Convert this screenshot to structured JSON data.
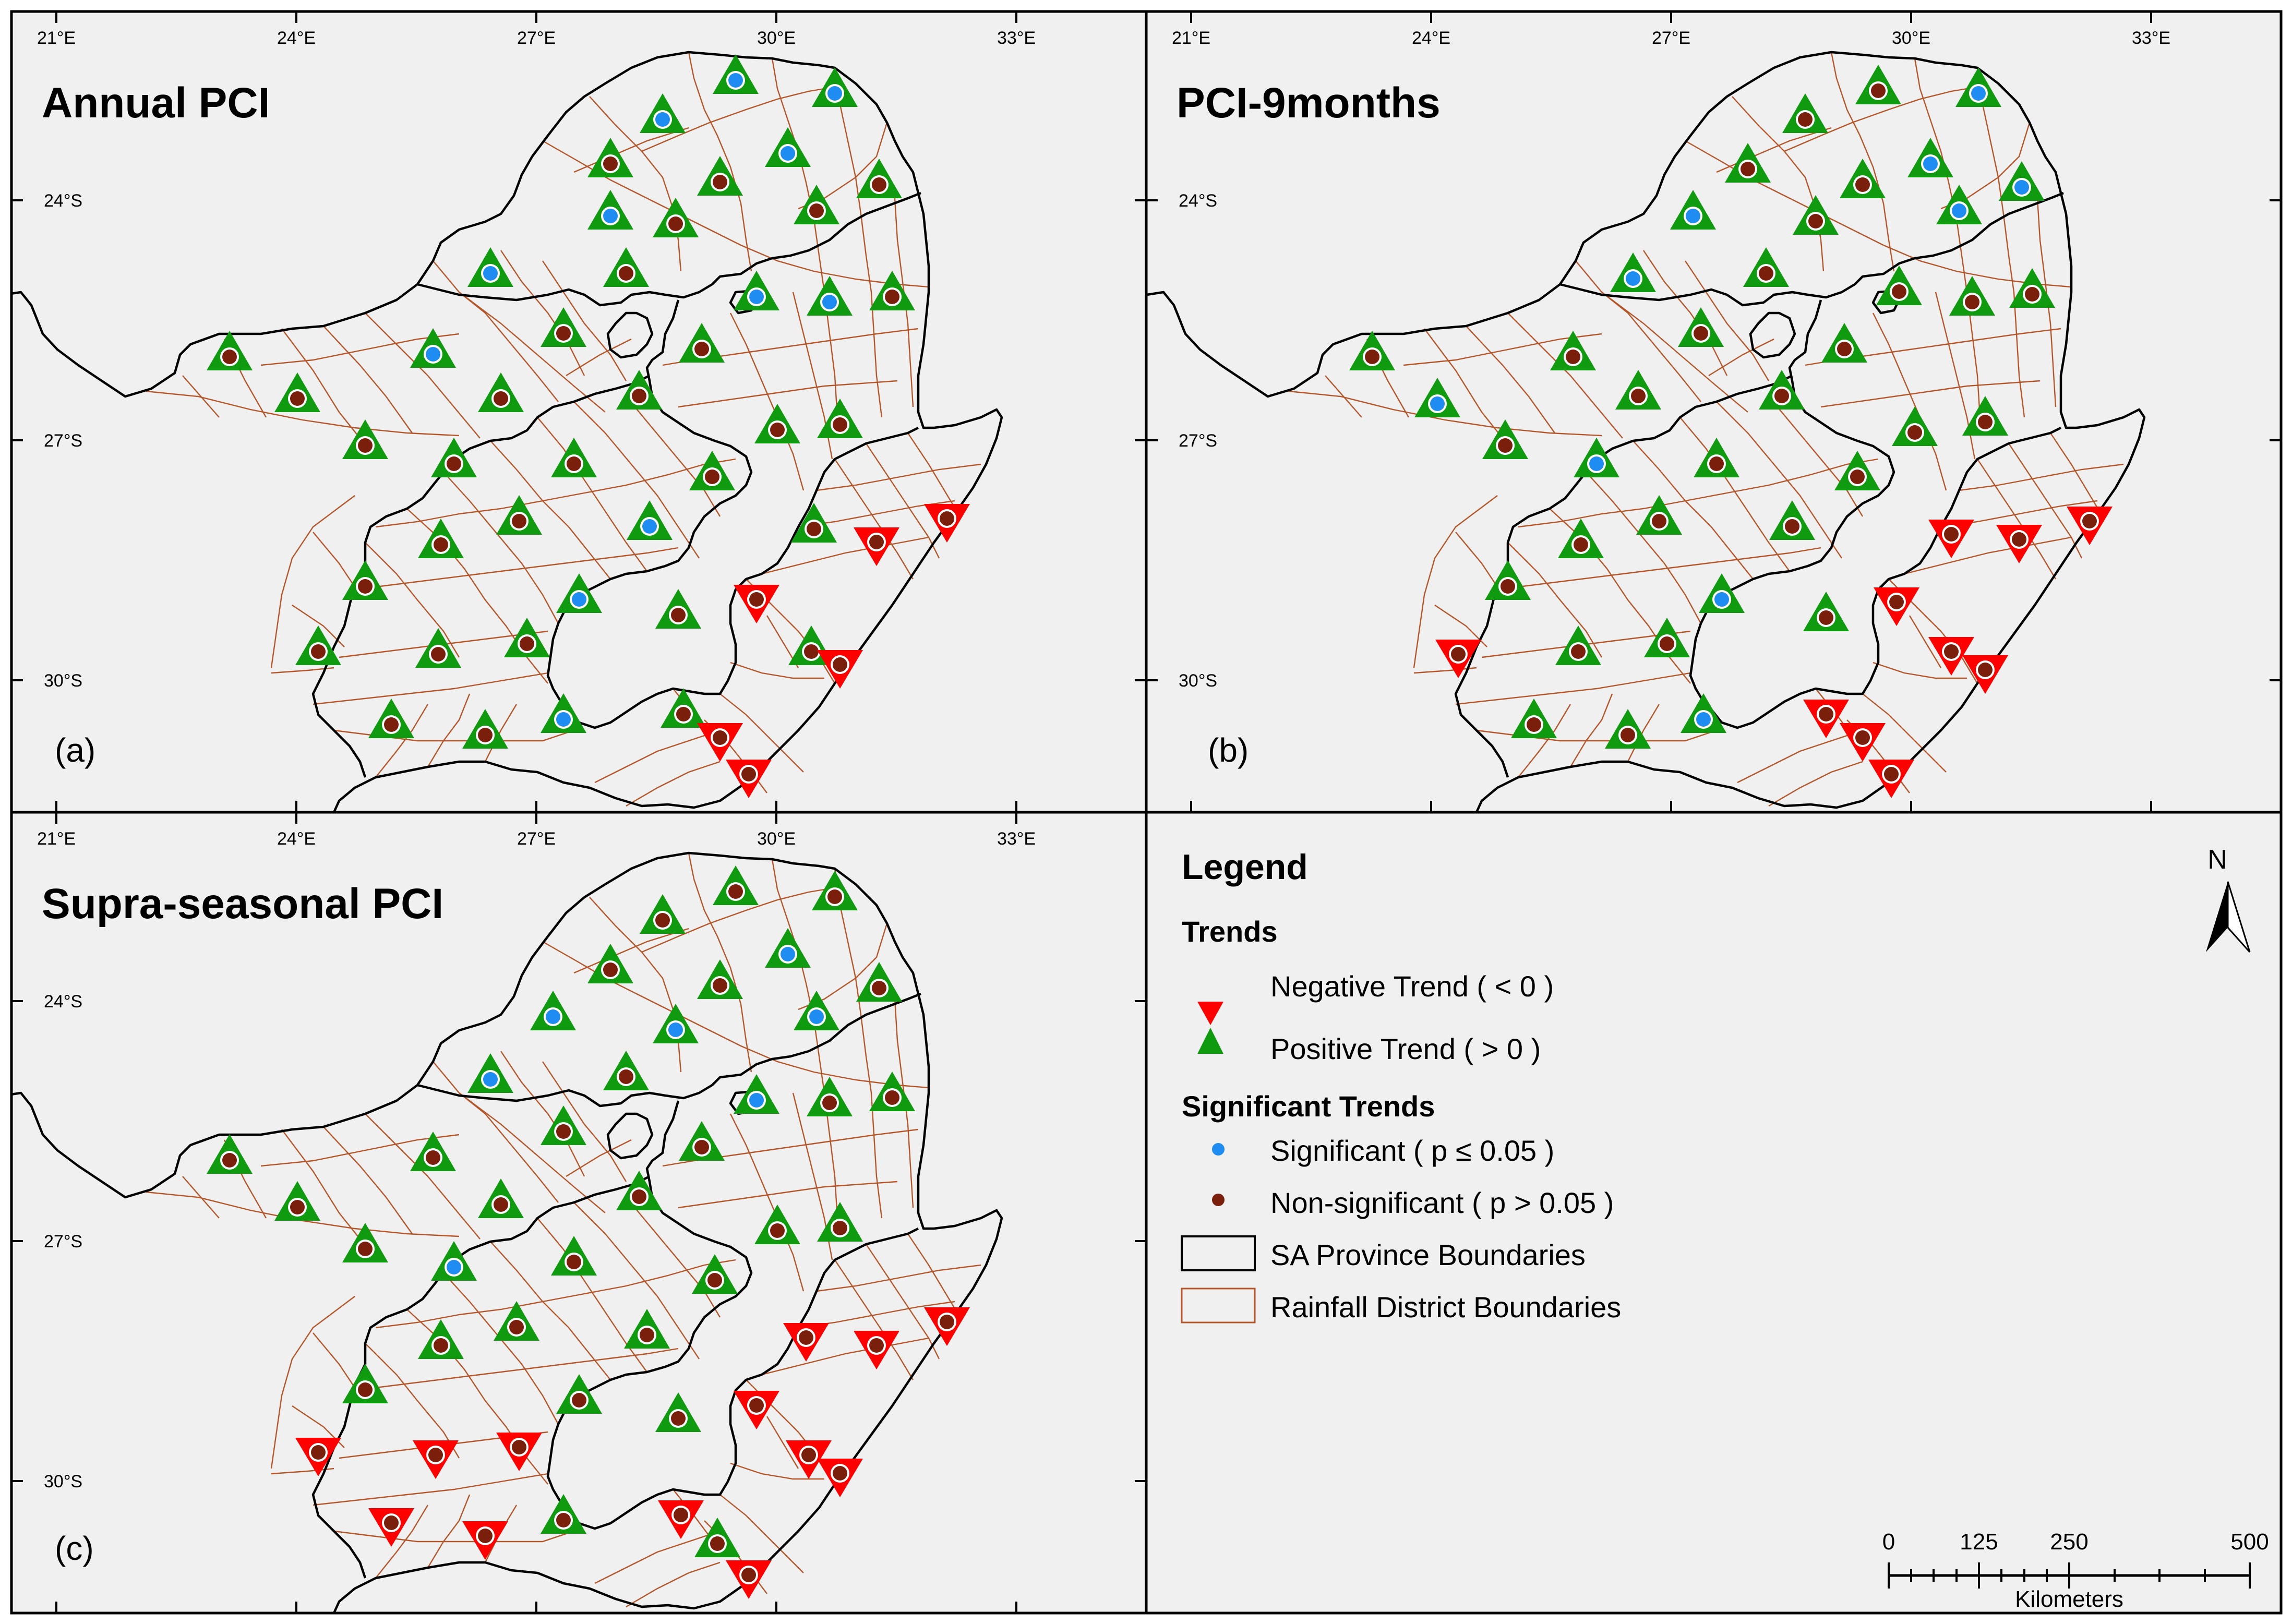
{
  "panels": [
    {
      "title": "Annual PCI",
      "label": "(a)",
      "stations": [
        [
          1410,
          150,
          "p",
          "s"
        ],
        [
          1600,
          175,
          "p",
          "s"
        ],
        [
          1270,
          225,
          "p",
          "s"
        ],
        [
          1510,
          290,
          "p",
          "s"
        ],
        [
          1170,
          410,
          "p",
          "s"
        ],
        [
          940,
          520,
          "p",
          "s"
        ],
        [
          830,
          675,
          "p",
          "s"
        ],
        [
          1450,
          565,
          "p",
          "s"
        ],
        [
          1590,
          575,
          "p",
          "s"
        ],
        [
          1245,
          1005,
          "p",
          "s"
        ],
        [
          1110,
          1145,
          "p",
          "s"
        ],
        [
          1080,
          1375,
          "p",
          "s"
        ],
        [
          1170,
          310,
          "p",
          "n"
        ],
        [
          1380,
          345,
          "p",
          "n"
        ],
        [
          1685,
          350,
          "p",
          "n"
        ],
        [
          1295,
          425,
          "p",
          "n"
        ],
        [
          1565,
          400,
          "p",
          "n"
        ],
        [
          1200,
          520,
          "p",
          "n"
        ],
        [
          1710,
          565,
          "p",
          "n"
        ],
        [
          1080,
          635,
          "p",
          "n"
        ],
        [
          1345,
          665,
          "p",
          "n"
        ],
        [
          440,
          680,
          "p",
          "n"
        ],
        [
          570,
          760,
          "p",
          "n"
        ],
        [
          960,
          760,
          "p",
          "n"
        ],
        [
          1225,
          755,
          "p",
          "n"
        ],
        [
          1490,
          820,
          "p",
          "n"
        ],
        [
          1610,
          810,
          "p",
          "n"
        ],
        [
          700,
          850,
          "p",
          "n"
        ],
        [
          870,
          885,
          "p",
          "n"
        ],
        [
          1100,
          885,
          "p",
          "n"
        ],
        [
          1365,
          910,
          "p",
          "n"
        ],
        [
          995,
          995,
          "p",
          "n"
        ],
        [
          845,
          1040,
          "p",
          "n"
        ],
        [
          700,
          1120,
          "p",
          "n"
        ],
        [
          1300,
          1175,
          "p",
          "n"
        ],
        [
          610,
          1245,
          "p",
          "n"
        ],
        [
          840,
          1250,
          "p",
          "n"
        ],
        [
          1010,
          1230,
          "p",
          "n"
        ],
        [
          750,
          1385,
          "p",
          "n"
        ],
        [
          930,
          1405,
          "p",
          "n"
        ],
        [
          1310,
          1365,
          "p",
          "n"
        ],
        [
          1555,
          1245,
          "p",
          "n"
        ],
        [
          1560,
          1010,
          "p",
          "n"
        ],
        [
          1680,
          1045,
          "n",
          "n"
        ],
        [
          1815,
          1000,
          "n",
          "n"
        ],
        [
          1450,
          1155,
          "n",
          "n"
        ],
        [
          1610,
          1280,
          "n",
          "n"
        ],
        [
          1380,
          1420,
          "n",
          "n"
        ],
        [
          1435,
          1490,
          "n",
          "n"
        ]
      ]
    },
    {
      "title": "PCI-9months",
      "label": "(b)",
      "stations": [
        [
          3792,
          175,
          "p",
          "s"
        ],
        [
          3700,
          310,
          "p",
          "s"
        ],
        [
          3875,
          355,
          "p",
          "s"
        ],
        [
          3755,
          400,
          "p",
          "s"
        ],
        [
          3245,
          410,
          "p",
          "s"
        ],
        [
          3130,
          530,
          "p",
          "s"
        ],
        [
          2755,
          770,
          "p",
          "s"
        ],
        [
          3060,
          885,
          "p",
          "s"
        ],
        [
          3300,
          1145,
          "p",
          "s"
        ],
        [
          3265,
          1375,
          "p",
          "s"
        ],
        [
          3460,
          225,
          "p",
          "n"
        ],
        [
          3600,
          170,
          "p",
          "n"
        ],
        [
          3350,
          320,
          "p",
          "n"
        ],
        [
          3570,
          350,
          "p",
          "n"
        ],
        [
          3480,
          420,
          "p",
          "n"
        ],
        [
          3385,
          520,
          "p",
          "n"
        ],
        [
          3640,
          555,
          "p",
          "n"
        ],
        [
          3780,
          575,
          "p",
          "n"
        ],
        [
          3895,
          560,
          "p",
          "n"
        ],
        [
          3260,
          635,
          "p",
          "n"
        ],
        [
          3535,
          665,
          "p",
          "n"
        ],
        [
          2630,
          680,
          "p",
          "n"
        ],
        [
          3015,
          680,
          "p",
          "n"
        ],
        [
          3140,
          755,
          "p",
          "n"
        ],
        [
          3415,
          755,
          "p",
          "n"
        ],
        [
          3670,
          825,
          "p",
          "n"
        ],
        [
          3805,
          805,
          "p",
          "n"
        ],
        [
          2885,
          850,
          "p",
          "n"
        ],
        [
          3290,
          885,
          "p",
          "n"
        ],
        [
          3560,
          910,
          "p",
          "n"
        ],
        [
          3180,
          995,
          "p",
          "n"
        ],
        [
          3030,
          1040,
          "p",
          "n"
        ],
        [
          3435,
          1005,
          "p",
          "n"
        ],
        [
          2890,
          1120,
          "p",
          "n"
        ],
        [
          3500,
          1180,
          "p",
          "n"
        ],
        [
          3025,
          1245,
          "p",
          "n"
        ],
        [
          3195,
          1230,
          "p",
          "n"
        ],
        [
          2940,
          1385,
          "p",
          "n"
        ],
        [
          3120,
          1405,
          "p",
          "n"
        ],
        [
          3740,
          1030,
          "n",
          "n"
        ],
        [
          3870,
          1040,
          "n",
          "n"
        ],
        [
          4005,
          1005,
          "n",
          "n"
        ],
        [
          3635,
          1160,
          "n",
          "n"
        ],
        [
          2795,
          1260,
          "n",
          "n"
        ],
        [
          3740,
          1255,
          "n",
          "n"
        ],
        [
          3805,
          1290,
          "n",
          "n"
        ],
        [
          3500,
          1375,
          "n",
          "n"
        ],
        [
          3570,
          1420,
          "n",
          "n"
        ],
        [
          3625,
          1490,
          "n",
          "n"
        ]
      ]
    },
    {
      "title": "Supra-seasonal PCI",
      "label": "(c)",
      "stations": [
        [
          1510,
          1825,
          "p",
          "s"
        ],
        [
          1060,
          1945,
          "p",
          "s"
        ],
        [
          1295,
          1970,
          "p",
          "s"
        ],
        [
          1565,
          1945,
          "p",
          "s"
        ],
        [
          940,
          2065,
          "p",
          "s"
        ],
        [
          1450,
          2105,
          "p",
          "s"
        ],
        [
          870,
          2425,
          "p",
          "s"
        ],
        [
          1410,
          1705,
          "p",
          "n"
        ],
        [
          1270,
          1760,
          "p",
          "n"
        ],
        [
          1600,
          1715,
          "p",
          "n"
        ],
        [
          1170,
          1855,
          "p",
          "n"
        ],
        [
          1380,
          1885,
          "p",
          "n"
        ],
        [
          1685,
          1890,
          "p",
          "n"
        ],
        [
          1200,
          2060,
          "p",
          "n"
        ],
        [
          1590,
          2110,
          "p",
          "n"
        ],
        [
          1710,
          2100,
          "p",
          "n"
        ],
        [
          1080,
          2165,
          "p",
          "n"
        ],
        [
          1345,
          2195,
          "p",
          "n"
        ],
        [
          440,
          2220,
          "p",
          "n"
        ],
        [
          570,
          2310,
          "p",
          "n"
        ],
        [
          830,
          2215,
          "p",
          "n"
        ],
        [
          960,
          2305,
          "p",
          "n"
        ],
        [
          1225,
          2290,
          "p",
          "n"
        ],
        [
          1490,
          2355,
          "p",
          "n"
        ],
        [
          1610,
          2350,
          "p",
          "n"
        ],
        [
          700,
          2390,
          "p",
          "n"
        ],
        [
          1100,
          2415,
          "p",
          "n"
        ],
        [
          1370,
          2450,
          "p",
          "n"
        ],
        [
          845,
          2575,
          "p",
          "n"
        ],
        [
          990,
          2540,
          "p",
          "n"
        ],
        [
          1240,
          2555,
          "p",
          "n"
        ],
        [
          700,
          2660,
          "p",
          "n"
        ],
        [
          1110,
          2680,
          "p",
          "n"
        ],
        [
          1300,
          2715,
          "p",
          "n"
        ],
        [
          1080,
          2910,
          "p",
          "n"
        ],
        [
          1375,
          2955,
          "p",
          "n"
        ],
        [
          1545,
          2570,
          "n",
          "n"
        ],
        [
          1680,
          2585,
          "n",
          "n"
        ],
        [
          1815,
          2540,
          "n",
          "n"
        ],
        [
          1450,
          2700,
          "n",
          "n"
        ],
        [
          610,
          2790,
          "n",
          "n"
        ],
        [
          835,
          2795,
          "n",
          "n"
        ],
        [
          995,
          2780,
          "n",
          "n"
        ],
        [
          1550,
          2795,
          "n",
          "n"
        ],
        [
          1610,
          2830,
          "n",
          "n"
        ],
        [
          750,
          2925,
          "n",
          "n"
        ],
        [
          930,
          2950,
          "n",
          "n"
        ],
        [
          1305,
          2910,
          "n",
          "n"
        ],
        [
          1435,
          3025,
          "n",
          "n"
        ]
      ]
    }
  ],
  "axes": {
    "lon_labels": [
      "21°E",
      "24°E",
      "27°E",
      "30°E",
      "33°E"
    ],
    "lat_labels": [
      "24°S",
      "27°S",
      "30°S"
    ]
  },
  "legend": {
    "title": "Legend",
    "trends_heading": "Trends",
    "negative": "Negative Trend ( < 0 )",
    "positive": "Positive Trend ( > 0 )",
    "sig_heading": "Significant Trends",
    "significant": "Significant ( p ≤ 0.05 )",
    "nonsignificant": "Non-significant ( p > 0.05 )",
    "province": "SA Province Boundaries",
    "district": "Rainfall District Boundaries"
  },
  "scalebar": {
    "labels": [
      "0",
      "125",
      "250",
      "500"
    ],
    "unit": "Kilometers"
  },
  "north": "N",
  "colors": {
    "panel_bg": "#f0f0f0",
    "positive": "#109a10",
    "negative": "#ff0000",
    "significant": "#1e8cf0",
    "nonsignificant": "#7a1f0c",
    "district": "#b5562a",
    "province": "#000000"
  }
}
